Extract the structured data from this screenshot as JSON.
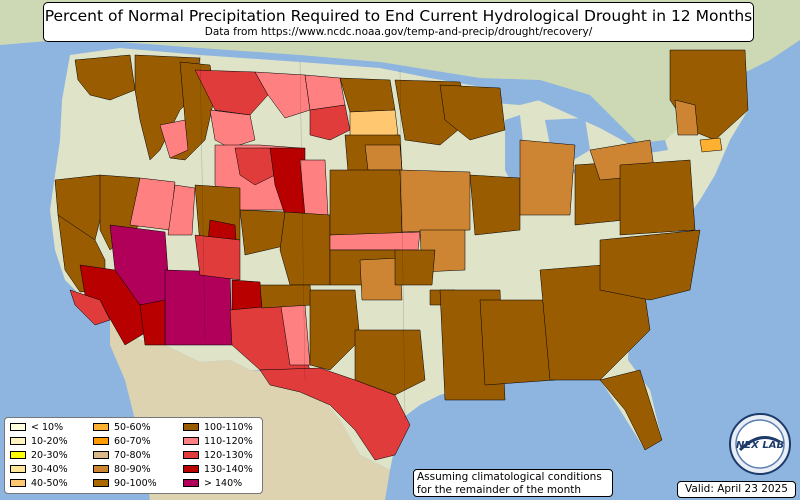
{
  "title": "Percent of Normal Precipitation Required to End Current Hydrological Drought in 12 Months",
  "subtitle": "Data from https://www.ncdc.noaa.gov/temp-and-precip/drought/recovery/",
  "note_line1": "Assuming climatological conditions",
  "note_line2": "for the remainder of the month",
  "valid": "Valid: April 23 2025",
  "logo_text": "NEX LAB",
  "colors": {
    "ocean": "#8eb4e0",
    "land": "#dfe3c8",
    "land_south": "#e6ddb8",
    "canada": "#cdd9b4",
    "mexico": "#ddd3b0",
    "lake": "#8eb4e0"
  },
  "legend": [
    {
      "label": "< 10%",
      "color": "#ffffe0"
    },
    {
      "label": "10-20%",
      "color": "#fff3c0"
    },
    {
      "label": "20-30%",
      "color": "#ffff00"
    },
    {
      "label": "30-40%",
      "color": "#ffe79a"
    },
    {
      "label": "40-50%",
      "color": "#ffc870"
    },
    {
      "label": "50-60%",
      "color": "#ffb030"
    },
    {
      "label": "60-70%",
      "color": "#ff9a00"
    },
    {
      "label": "70-80%",
      "color": "#d9b98a"
    },
    {
      "label": "80-90%",
      "color": "#cd8534"
    },
    {
      "label": "90-100%",
      "color": "#a86a00"
    },
    {
      "label": "100-110%",
      "color": "#9a5c00"
    },
    {
      "label": "110-120%",
      "color": "#ff8080"
    },
    {
      "label": "120-130%",
      "color": "#e03c3c"
    },
    {
      "label": "130-140%",
      "color": "#b80000"
    },
    {
      "label": "> 140%",
      "color": "#b0005a"
    }
  ]
}
